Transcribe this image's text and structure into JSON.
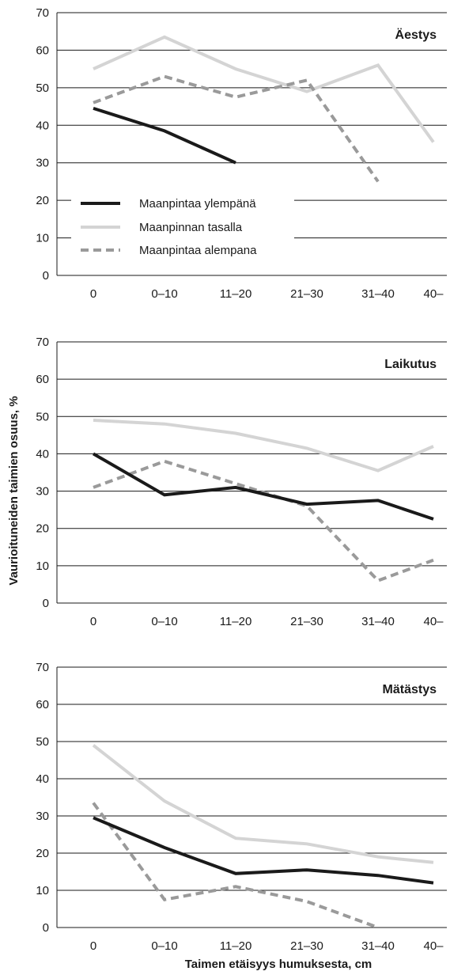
{
  "chart_data": {
    "type": "line",
    "ylabel": "Vaurioituneiden taimien osuus, %",
    "xlabel": "Taimen etäisyys humuksesta, cm",
    "categories": [
      "0",
      "0–10",
      "11–20",
      "21–30",
      "31–40",
      "40–"
    ],
    "ylim": [
      0,
      70
    ],
    "yticks": [
      0,
      10,
      20,
      30,
      40,
      50,
      60,
      70
    ],
    "grid": "horizontal",
    "legend": {
      "placement": "left-middle of top panel",
      "entries": [
        "Maanpintaa ylempänä",
        "Maanpinnan tasalla",
        "Maanpintaa alempana"
      ]
    },
    "series_styles": [
      {
        "name": "Maanpintaa ylempänä",
        "color": "#1a1a1a",
        "dash": "solid"
      },
      {
        "name": "Maanpinnan tasalla",
        "color": "#d4d4d4",
        "dash": "solid"
      },
      {
        "name": "Maanpintaa alempana",
        "color": "#9a9a9a",
        "dash": "dashed"
      }
    ],
    "panels": [
      {
        "title": "Äestys",
        "series": [
          {
            "name": "Maanpintaa ylempänä",
            "values": [
              44.5,
              38.5,
              30,
              null,
              null,
              null
            ]
          },
          {
            "name": "Maanpinnan tasalla",
            "values": [
              55,
              63.5,
              55,
              49,
              56,
              35.5
            ]
          },
          {
            "name": "Maanpintaa alempana",
            "values": [
              46,
              53,
              47.5,
              52,
              25,
              null
            ]
          }
        ]
      },
      {
        "title": "Laikutus",
        "series": [
          {
            "name": "Maanpintaa ylempänä",
            "values": [
              40,
              29,
              31,
              26.5,
              27.5,
              22.5
            ]
          },
          {
            "name": "Maanpinnan tasalla",
            "values": [
              49,
              48,
              45.5,
              41.5,
              35.5,
              42
            ]
          },
          {
            "name": "Maanpintaa alempana",
            "values": [
              31,
              38,
              32,
              26,
              6,
              11.5
            ]
          }
        ]
      },
      {
        "title": "Mätästys",
        "series": [
          {
            "name": "Maanpintaa ylempänä",
            "values": [
              29.5,
              21.5,
              14.5,
              15.5,
              14,
              12
            ]
          },
          {
            "name": "Maanpinnan tasalla",
            "values": [
              49,
              34,
              24,
              22.5,
              19,
              17.5
            ]
          },
          {
            "name": "Maanpintaa alempana",
            "values": [
              33.5,
              7.5,
              11,
              7,
              0,
              null
            ]
          }
        ]
      }
    ]
  }
}
